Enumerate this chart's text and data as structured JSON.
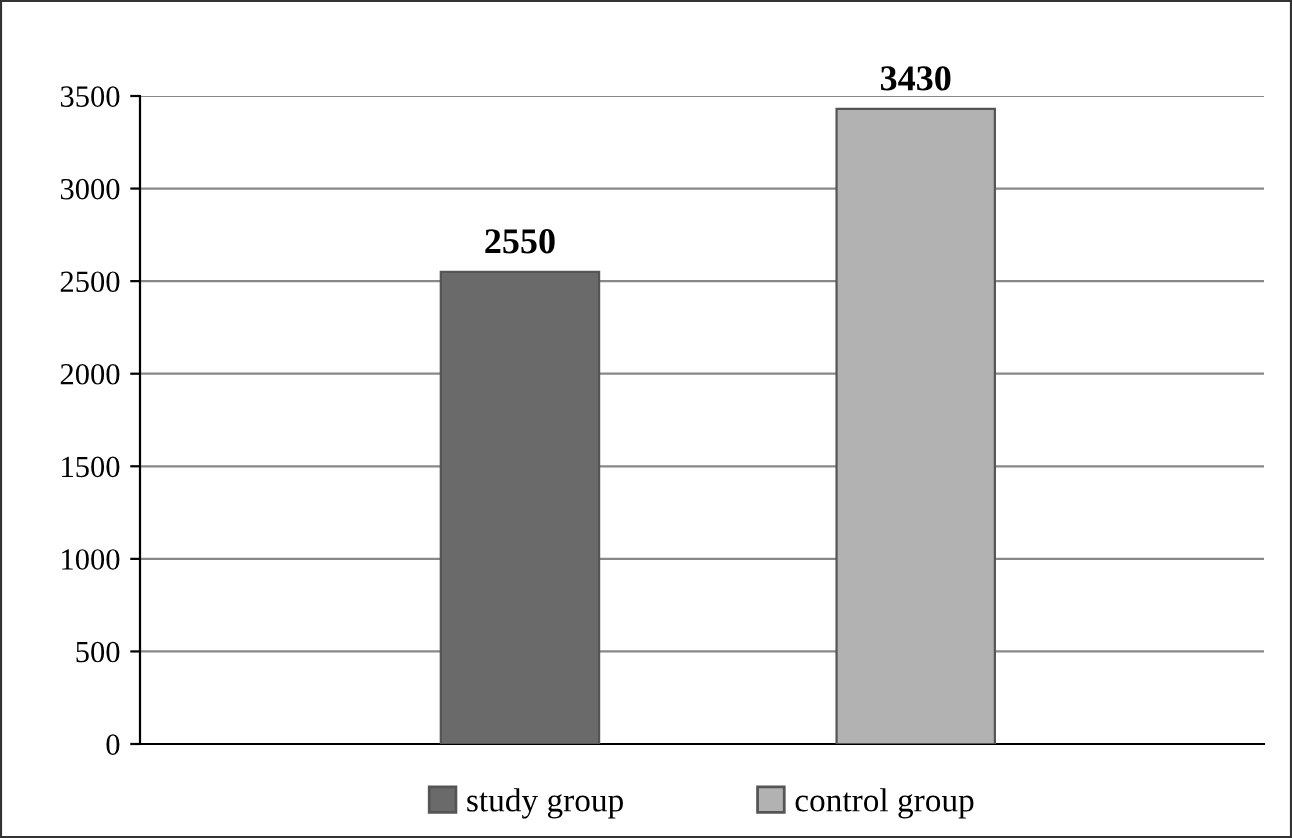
{
  "chart_data": {
    "type": "bar",
    "categories": [
      null,
      null
    ],
    "series": [
      {
        "name": "study group",
        "color": "#6a6a6a",
        "values": [
          2550,
          null
        ]
      },
      {
        "name": "control group",
        "color": "#b2b2b2",
        "values": [
          null,
          3430
        ]
      }
    ],
    "ylim": [
      0,
      3500
    ],
    "yticks": [
      0,
      500,
      1000,
      1500,
      2000,
      2500,
      3000,
      3500
    ],
    "grid": "y",
    "legend": "bottom",
    "data_labels": true
  }
}
